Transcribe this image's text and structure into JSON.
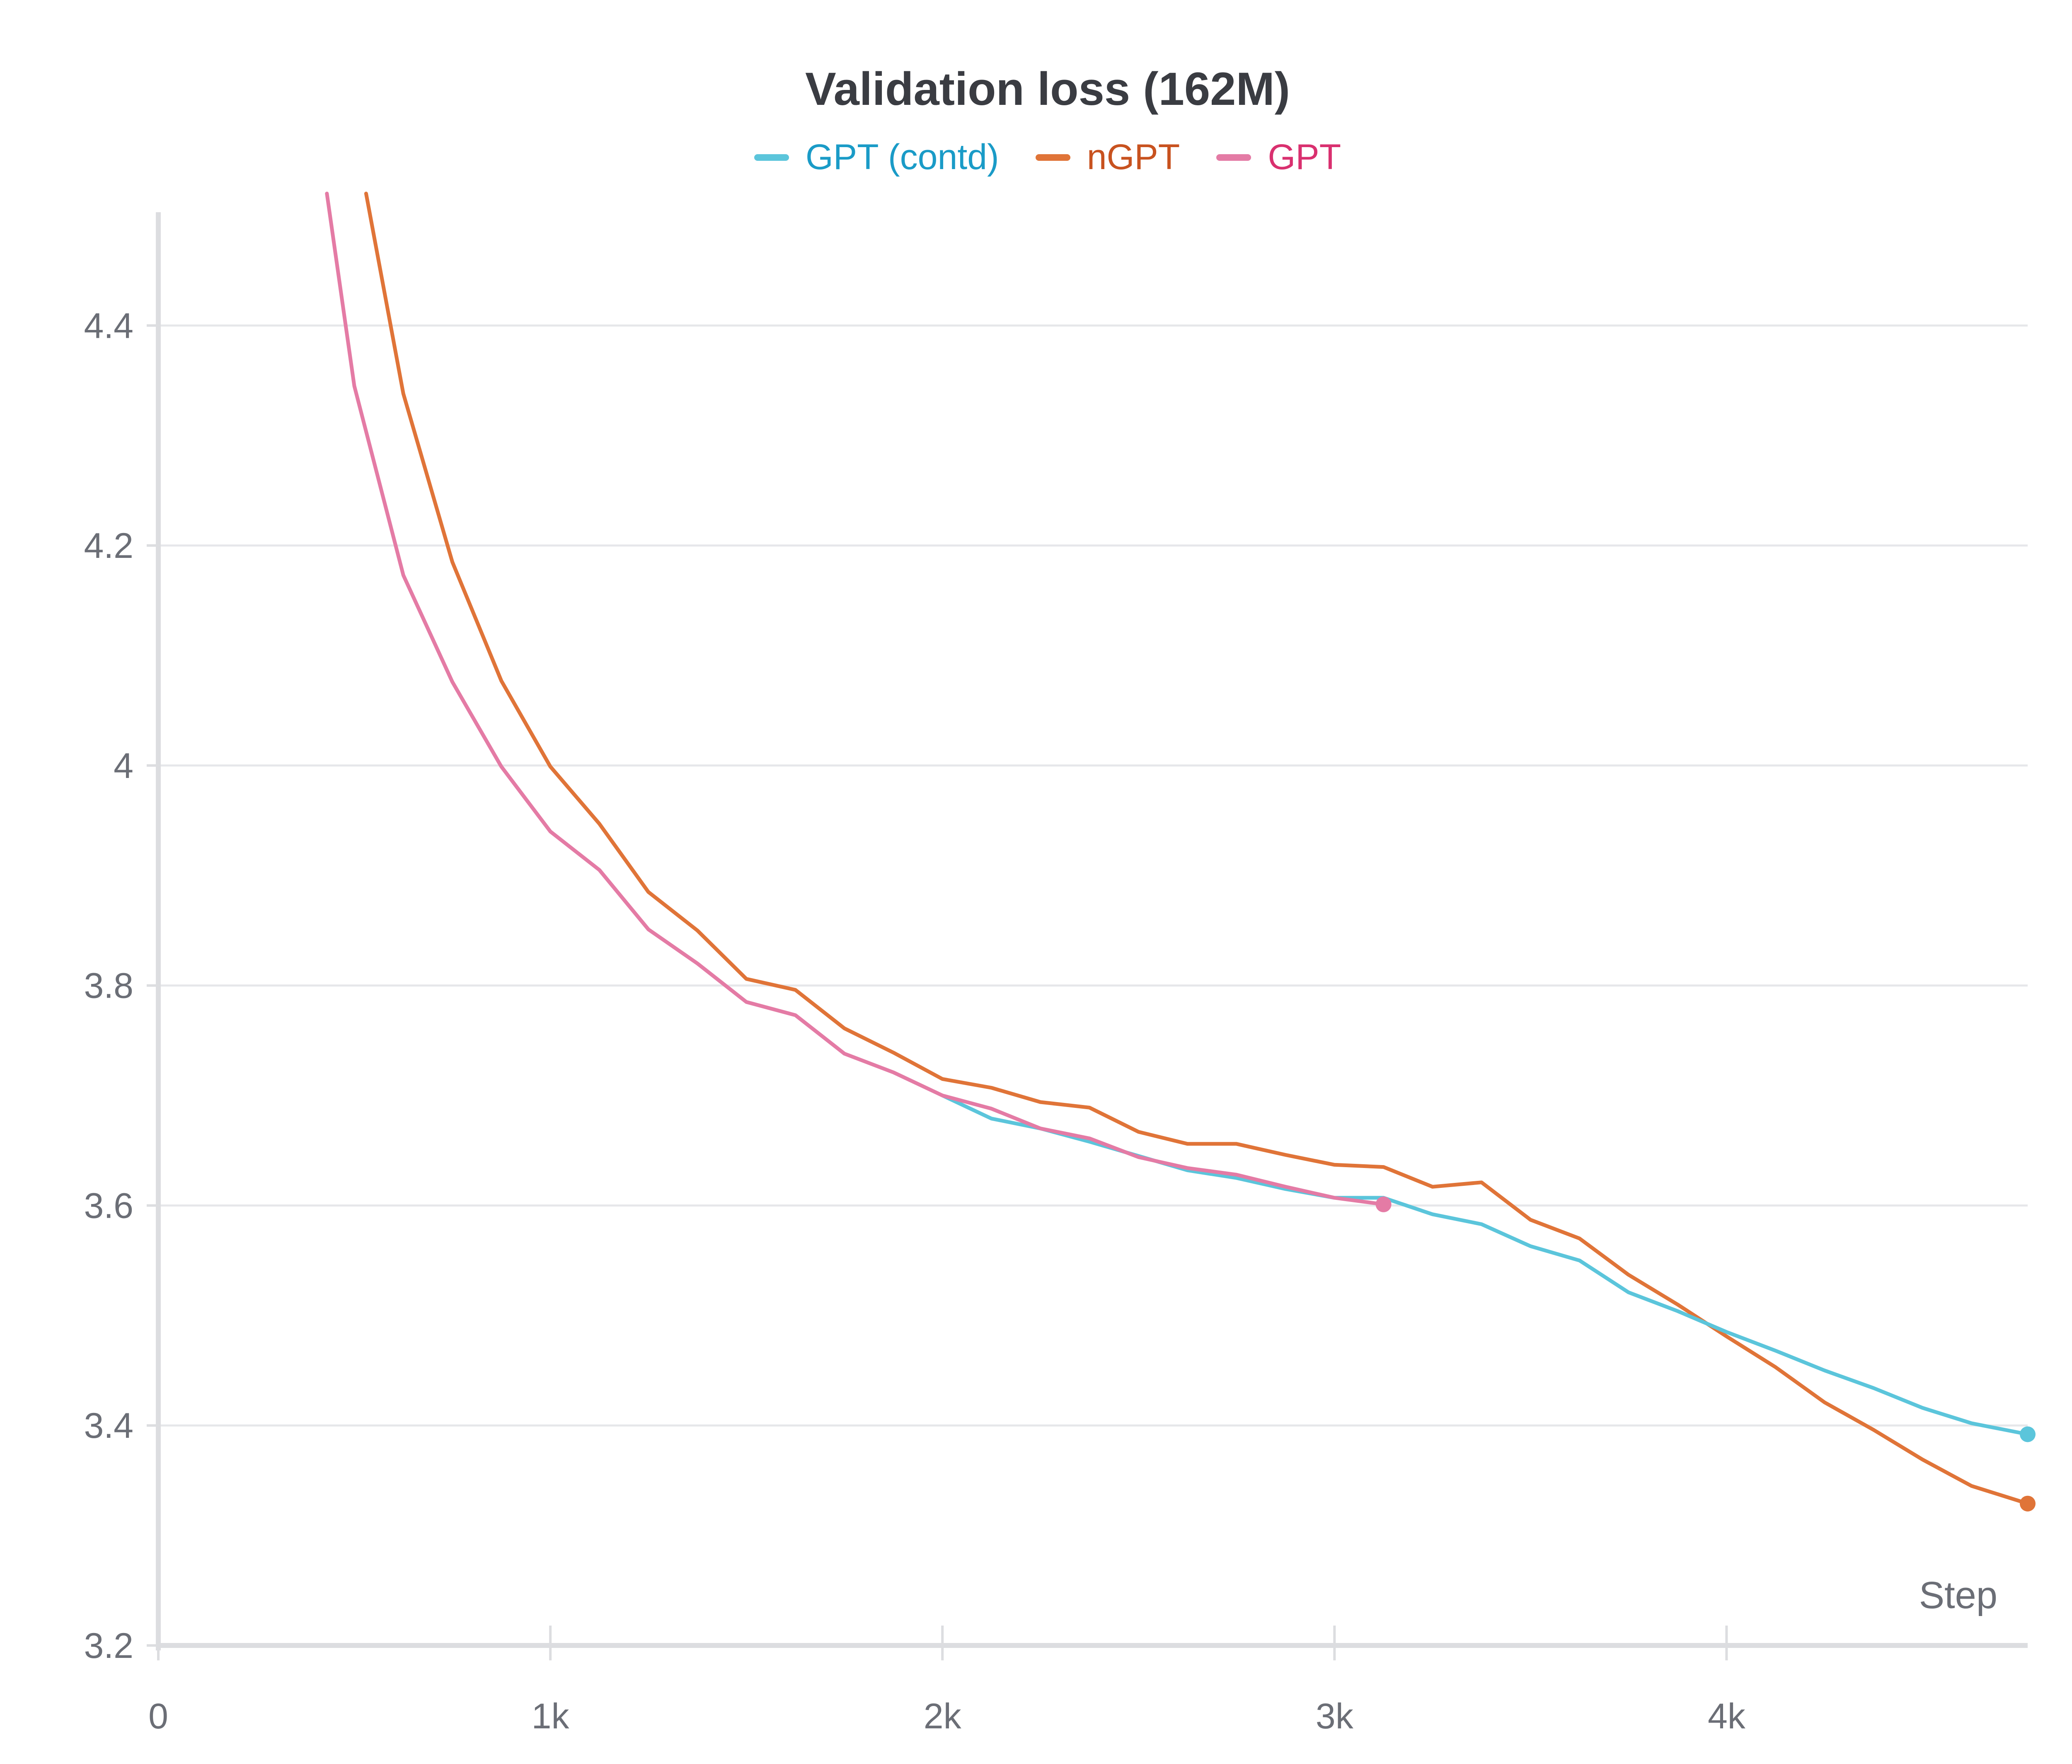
{
  "chart_data": {
    "type": "line",
    "title": "Validation loss (162M)",
    "xlabel": "Step",
    "ylabel": "",
    "xlim": [
      0,
      4768
    ],
    "ylim": [
      3.2,
      4.5
    ],
    "grid": true,
    "legend_placement": "top-center",
    "x_ticks": [
      {
        "value": 0,
        "label": "0"
      },
      {
        "value": 1000,
        "label": "1k"
      },
      {
        "value": 2000,
        "label": "2k"
      },
      {
        "value": 3000,
        "label": "3k"
      },
      {
        "value": 4000,
        "label": "4k"
      }
    ],
    "y_ticks": [
      {
        "value": 3.2,
        "label": "3.2"
      },
      {
        "value": 3.4,
        "label": "3.4"
      },
      {
        "value": 3.6,
        "label": "3.6"
      },
      {
        "value": 3.8,
        "label": "3.8"
      },
      {
        "value": 4.0,
        "label": "4"
      },
      {
        "value": 4.2,
        "label": "4.2"
      },
      {
        "value": 4.4,
        "label": "4.4"
      }
    ],
    "series": [
      {
        "name": "GPT (contd)",
        "color": "#5bc5db",
        "label_color": "#1a9bc7",
        "end_marker": true,
        "points": [
          [
            2000,
            3.7
          ],
          [
            2125,
            3.679
          ],
          [
            2250,
            3.67
          ],
          [
            2375,
            3.658
          ],
          [
            2500,
            3.645
          ],
          [
            2625,
            3.632
          ],
          [
            2750,
            3.625
          ],
          [
            2875,
            3.615
          ],
          [
            3000,
            3.607
          ],
          [
            3125,
            3.607
          ],
          [
            3250,
            3.592
          ],
          [
            3375,
            3.583
          ],
          [
            3500,
            3.563
          ],
          [
            3625,
            3.55
          ],
          [
            3750,
            3.521
          ],
          [
            3875,
            3.504
          ],
          [
            4000,
            3.485
          ],
          [
            4125,
            3.468
          ],
          [
            4250,
            3.45
          ],
          [
            4375,
            3.434
          ],
          [
            4500,
            3.416
          ],
          [
            4625,
            3.402
          ],
          [
            4768,
            3.392
          ]
        ]
      },
      {
        "name": "nGPT",
        "color": "#e07438",
        "label_color": "#c8521f",
        "end_marker": true,
        "points": [
          [
            530,
            4.52
          ],
          [
            625,
            4.338
          ],
          [
            750,
            4.185
          ],
          [
            875,
            4.077
          ],
          [
            1000,
            3.999
          ],
          [
            1125,
            3.947
          ],
          [
            1250,
            3.885
          ],
          [
            1375,
            3.85
          ],
          [
            1500,
            3.806
          ],
          [
            1625,
            3.796
          ],
          [
            1750,
            3.761
          ],
          [
            1875,
            3.739
          ],
          [
            2000,
            3.715
          ],
          [
            2125,
            3.707
          ],
          [
            2250,
            3.694
          ],
          [
            2375,
            3.689
          ],
          [
            2500,
            3.667
          ],
          [
            2625,
            3.656
          ],
          [
            2750,
            3.656
          ],
          [
            2875,
            3.646
          ],
          [
            3000,
            3.637
          ],
          [
            3125,
            3.635
          ],
          [
            3250,
            3.617
          ],
          [
            3375,
            3.621
          ],
          [
            3500,
            3.587
          ],
          [
            3625,
            3.57
          ],
          [
            3750,
            3.537
          ],
          [
            3875,
            3.51
          ],
          [
            4000,
            3.481
          ],
          [
            4125,
            3.453
          ],
          [
            4250,
            3.421
          ],
          [
            4375,
            3.396
          ],
          [
            4500,
            3.369
          ],
          [
            4625,
            3.345
          ],
          [
            4768,
            3.329
          ]
        ]
      },
      {
        "name": "GPT",
        "color": "#e47ba5",
        "label_color": "#d9306f",
        "end_marker": true,
        "points": [
          [
            430,
            4.52
          ],
          [
            500,
            4.345
          ],
          [
            625,
            4.173
          ],
          [
            750,
            4.076
          ],
          [
            875,
            3.999
          ],
          [
            1000,
            3.94
          ],
          [
            1125,
            3.905
          ],
          [
            1250,
            3.851
          ],
          [
            1375,
            3.82
          ],
          [
            1500,
            3.785
          ],
          [
            1625,
            3.773
          ],
          [
            1750,
            3.738
          ],
          [
            1875,
            3.721
          ],
          [
            2000,
            3.7
          ],
          [
            2125,
            3.688
          ],
          [
            2250,
            3.67
          ],
          [
            2375,
            3.661
          ],
          [
            2500,
            3.644
          ],
          [
            2625,
            3.634
          ],
          [
            2750,
            3.628
          ],
          [
            2875,
            3.617
          ],
          [
            3000,
            3.607
          ],
          [
            3125,
            3.601
          ]
        ]
      }
    ]
  }
}
